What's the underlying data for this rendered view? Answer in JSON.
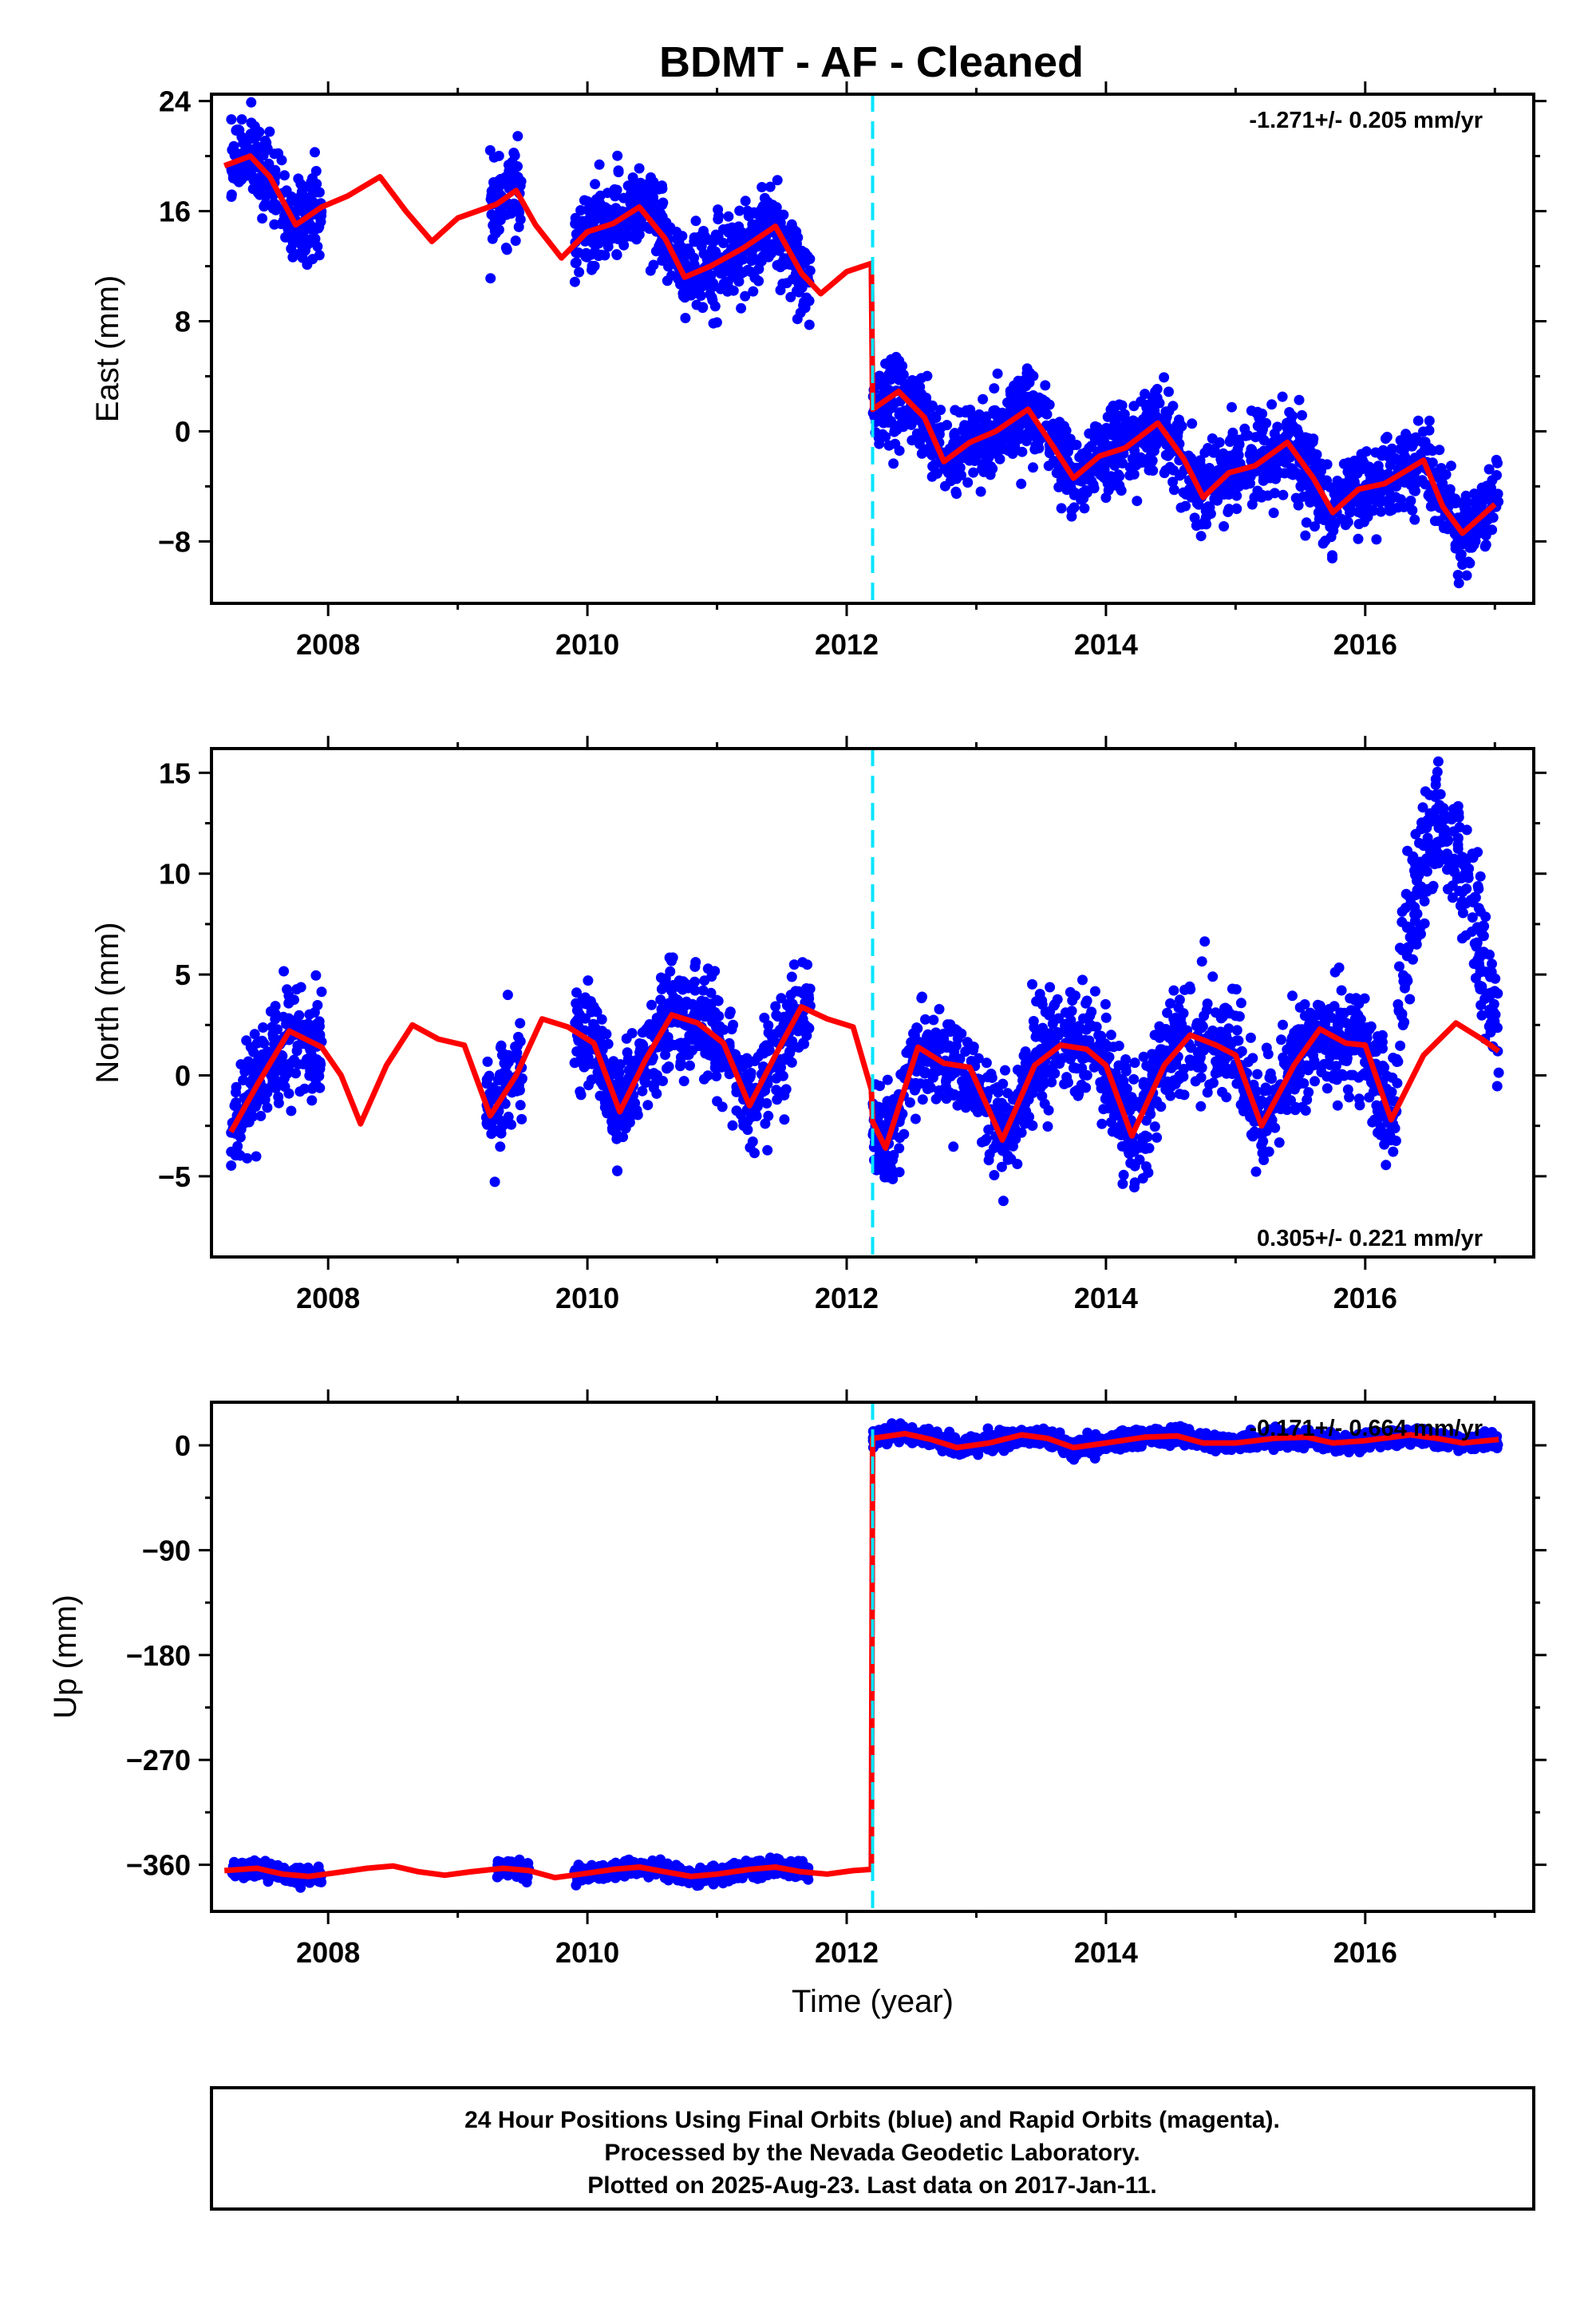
{
  "title": "BDMT  - AF - Cleaned",
  "footer": {
    "line1": "24 Hour Positions Using Final Orbits (blue) and Rapid Orbits (magenta).",
    "line2": "Processed by the Nevada Geodetic Laboratory.",
    "line3": "Plotted on 2025-Aug-23. Last data on 2017-Jan-11."
  },
  "colors": {
    "points": "#0000ff",
    "model": "#ff0000",
    "break": "#00e5ff",
    "axes": "#000000"
  },
  "chart_data": [
    {
      "type": "scatter",
      "ylabel": "East (mm)",
      "xlabel": "",
      "rate": "-1.271+/- 0.205 mm/yr",
      "xlim": [
        2007.1,
        2017.3
      ],
      "ylim": [
        -12.5,
        24.5
      ],
      "xticks": [
        2008,
        2010,
        2012,
        2014,
        2016
      ],
      "yticks": [
        24,
        16,
        8,
        0,
        -8
      ],
      "ytick_labels": [
        "24",
        "16",
        "8",
        "0",
        "−8"
      ],
      "break_year": 2012.2,
      "model": [
        [
          2007.2,
          19.3
        ],
        [
          2007.4,
          20.0
        ],
        [
          2007.55,
          18.5
        ],
        [
          2007.75,
          15.0
        ],
        [
          2007.95,
          16.3
        ],
        [
          2008.15,
          17.1
        ],
        [
          2008.4,
          18.5
        ],
        [
          2008.6,
          16.0
        ],
        [
          2008.8,
          13.8
        ],
        [
          2009.0,
          15.5
        ],
        [
          2009.3,
          16.5
        ],
        [
          2009.45,
          17.5
        ],
        [
          2009.6,
          15.0
        ],
        [
          2009.8,
          12.6
        ],
        [
          2010.0,
          14.5
        ],
        [
          2010.2,
          15.1
        ],
        [
          2010.4,
          16.3
        ],
        [
          2010.6,
          14.0
        ],
        [
          2010.75,
          11.2
        ],
        [
          2010.95,
          12.0
        ],
        [
          2011.2,
          13.3
        ],
        [
          2011.45,
          14.9
        ],
        [
          2011.65,
          11.5
        ],
        [
          2011.8,
          10.0
        ],
        [
          2012.0,
          11.6
        ],
        [
          2012.19,
          12.2
        ],
        [
          2012.2,
          1.6
        ],
        [
          2012.4,
          2.9
        ],
        [
          2012.6,
          1.0
        ],
        [
          2012.75,
          -2.2
        ],
        [
          2012.95,
          -0.8
        ],
        [
          2013.15,
          0.0
        ],
        [
          2013.4,
          1.6
        ],
        [
          2013.6,
          -1.2
        ],
        [
          2013.75,
          -3.4
        ],
        [
          2013.95,
          -1.8
        ],
        [
          2014.15,
          -1.2
        ],
        [
          2014.4,
          0.6
        ],
        [
          2014.6,
          -2.0
        ],
        [
          2014.75,
          -4.8
        ],
        [
          2014.95,
          -3.0
        ],
        [
          2015.15,
          -2.5
        ],
        [
          2015.4,
          -0.8
        ],
        [
          2015.6,
          -3.4
        ],
        [
          2015.75,
          -5.9
        ],
        [
          2015.95,
          -4.2
        ],
        [
          2016.15,
          -3.8
        ],
        [
          2016.45,
          -2.1
        ],
        [
          2016.6,
          -5.5
        ],
        [
          2016.75,
          -7.4
        ],
        [
          2017.0,
          -5.3
        ]
      ],
      "data_segments": [
        [
          2007.25,
          2007.95
        ],
        [
          2009.25,
          2009.5
        ],
        [
          2009.9,
          2011.72
        ],
        [
          2012.2,
          2017.03
        ]
      ],
      "scatter_sd": 1.5
    },
    {
      "type": "scatter",
      "ylabel": "North (mm)",
      "xlabel": "",
      "rate": "0.305+/- 0.221 mm/yr",
      "xlim": [
        2007.1,
        2017.3
      ],
      "ylim": [
        -9,
        16.2
      ],
      "xticks": [
        2008,
        2010,
        2012,
        2014,
        2016
      ],
      "yticks": [
        15,
        10,
        5,
        0,
        -5
      ],
      "ytick_labels": [
        "15",
        "10",
        "5",
        "0",
        "−5"
      ],
      "break_year": 2012.2,
      "model": [
        [
          2007.25,
          -2.8
        ],
        [
          2007.45,
          -0.5
        ],
        [
          2007.7,
          2.2
        ],
        [
          2007.95,
          1.4
        ],
        [
          2008.1,
          0.0
        ],
        [
          2008.25,
          -2.4
        ],
        [
          2008.45,
          0.5
        ],
        [
          2008.65,
          2.5
        ],
        [
          2008.85,
          1.8
        ],
        [
          2009.05,
          1.5
        ],
        [
          2009.25,
          -2.0
        ],
        [
          2009.45,
          0.0
        ],
        [
          2009.65,
          2.8
        ],
        [
          2009.85,
          2.4
        ],
        [
          2010.05,
          1.6
        ],
        [
          2010.25,
          -1.8
        ],
        [
          2010.45,
          0.8
        ],
        [
          2010.65,
          3.0
        ],
        [
          2010.85,
          2.6
        ],
        [
          2011.05,
          1.6
        ],
        [
          2011.25,
          -1.5
        ],
        [
          2011.45,
          1.0
        ],
        [
          2011.65,
          3.4
        ],
        [
          2011.85,
          2.8
        ],
        [
          2012.05,
          2.4
        ],
        [
          2012.19,
          -0.7
        ],
        [
          2012.2,
          -2.3
        ],
        [
          2012.3,
          -3.6
        ],
        [
          2012.55,
          1.4
        ],
        [
          2012.75,
          0.6
        ],
        [
          2012.95,
          0.4
        ],
        [
          2013.2,
          -3.2
        ],
        [
          2013.45,
          0.5
        ],
        [
          2013.65,
          1.5
        ],
        [
          2013.85,
          1.3
        ],
        [
          2014.0,
          0.5
        ],
        [
          2014.2,
          -3.0
        ],
        [
          2014.45,
          0.5
        ],
        [
          2014.65,
          2.0
        ],
        [
          2014.85,
          1.5
        ],
        [
          2015.0,
          1.0
        ],
        [
          2015.2,
          -2.5
        ],
        [
          2015.45,
          0.5
        ],
        [
          2015.65,
          2.3
        ],
        [
          2015.85,
          1.6
        ],
        [
          2016.0,
          1.5
        ],
        [
          2016.2,
          -2.2
        ],
        [
          2016.45,
          1.0
        ],
        [
          2016.7,
          2.6
        ],
        [
          2016.9,
          1.8
        ],
        [
          2017.03,
          1.2
        ]
      ],
      "data_segments": [
        [
          2007.25,
          2007.95
        ],
        [
          2009.22,
          2009.5
        ],
        [
          2009.9,
          2011.72
        ],
        [
          2012.2,
          2016.2
        ],
        [
          2016.2,
          2017.03
        ]
      ],
      "scatter_sd": 1.3,
      "excursion": [
        2016.25,
        2017.03
      ]
    },
    {
      "type": "scatter",
      "ylabel": "Up (mm)",
      "xlabel": "Time (year)",
      "rate": "-0.171+/- 0.664 mm/yr",
      "xlim": [
        2007.1,
        2017.3
      ],
      "ylim": [
        -400,
        37
      ],
      "xticks": [
        2008,
        2010,
        2012,
        2014,
        2016
      ],
      "yticks": [
        0,
        -90,
        -180,
        -270,
        -360
      ],
      "ytick_labels": [
        "0",
        "−90",
        "−180",
        "−270",
        "−360"
      ],
      "break_year": 2012.2,
      "model": [
        [
          2007.2,
          -365
        ],
        [
          2007.45,
          -363
        ],
        [
          2007.65,
          -368
        ],
        [
          2007.85,
          -370
        ],
        [
          2008.05,
          -367
        ],
        [
          2008.3,
          -363
        ],
        [
          2008.5,
          -361
        ],
        [
          2008.7,
          -366
        ],
        [
          2008.9,
          -369
        ],
        [
          2009.1,
          -366
        ],
        [
          2009.35,
          -363
        ],
        [
          2009.55,
          -365
        ],
        [
          2009.75,
          -371
        ],
        [
          2009.95,
          -368
        ],
        [
          2010.2,
          -364
        ],
        [
          2010.4,
          -362
        ],
        [
          2010.6,
          -366
        ],
        [
          2010.8,
          -370
        ],
        [
          2011.0,
          -368
        ],
        [
          2011.25,
          -364
        ],
        [
          2011.45,
          -362
        ],
        [
          2011.65,
          -366
        ],
        [
          2011.85,
          -368
        ],
        [
          2012.05,
          -365
        ],
        [
          2012.19,
          -364
        ],
        [
          2012.2,
          6
        ],
        [
          2012.45,
          10
        ],
        [
          2012.65,
          5
        ],
        [
          2012.85,
          -2
        ],
        [
          2013.1,
          2
        ],
        [
          2013.35,
          9
        ],
        [
          2013.55,
          6
        ],
        [
          2013.75,
          -2
        ],
        [
          2014.0,
          2
        ],
        [
          2014.3,
          7
        ],
        [
          2014.55,
          8
        ],
        [
          2014.75,
          2
        ],
        [
          2015.0,
          2
        ],
        [
          2015.3,
          6
        ],
        [
          2015.55,
          7
        ],
        [
          2015.75,
          2
        ],
        [
          2016.0,
          4
        ],
        [
          2016.35,
          9
        ],
        [
          2016.55,
          6
        ],
        [
          2016.75,
          2
        ],
        [
          2017.03,
          5
        ]
      ],
      "data_segments": [
        [
          2007.25,
          2007.95
        ],
        [
          2009.3,
          2009.55
        ],
        [
          2009.9,
          2011.72
        ],
        [
          2012.2,
          2017.03
        ]
      ],
      "scatter_sd": 3.5
    }
  ]
}
